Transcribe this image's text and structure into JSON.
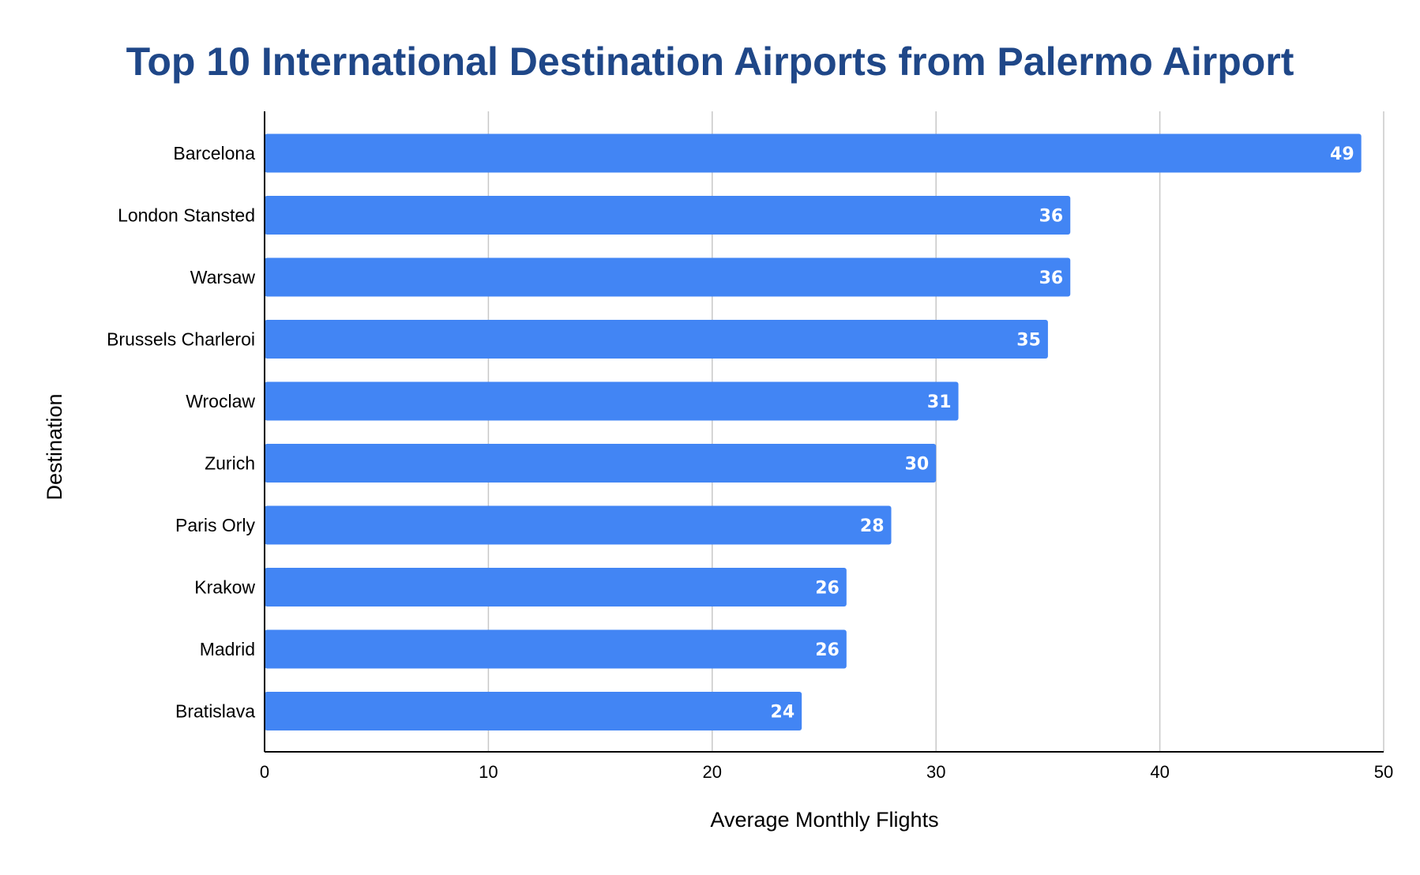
{
  "chart_data": {
    "type": "bar",
    "orientation": "horizontal",
    "title": "Top 10 International Destination Airports from Palermo Airport",
    "xlabel": "Average Monthly Flights",
    "ylabel": "Destination",
    "categories": [
      "Barcelona",
      "London Stansted",
      "Warsaw",
      "Brussels Charleroi",
      "Wroclaw",
      "Zurich",
      "Paris Orly",
      "Krakow",
      "Madrid",
      "Bratislava"
    ],
    "values": [
      49,
      36,
      36,
      35,
      31,
      30,
      28,
      26,
      26,
      24
    ],
    "xlim": [
      0,
      50
    ],
    "xticks": [
      "0",
      "10",
      "20",
      "30",
      "40",
      "50"
    ],
    "grid": true,
    "data_labels": true,
    "colors": {
      "bar": "#4285f4",
      "title": "#1f4788",
      "grid": "#c8c8c8",
      "axis": "#000000",
      "data_label": "#ffffff"
    }
  }
}
